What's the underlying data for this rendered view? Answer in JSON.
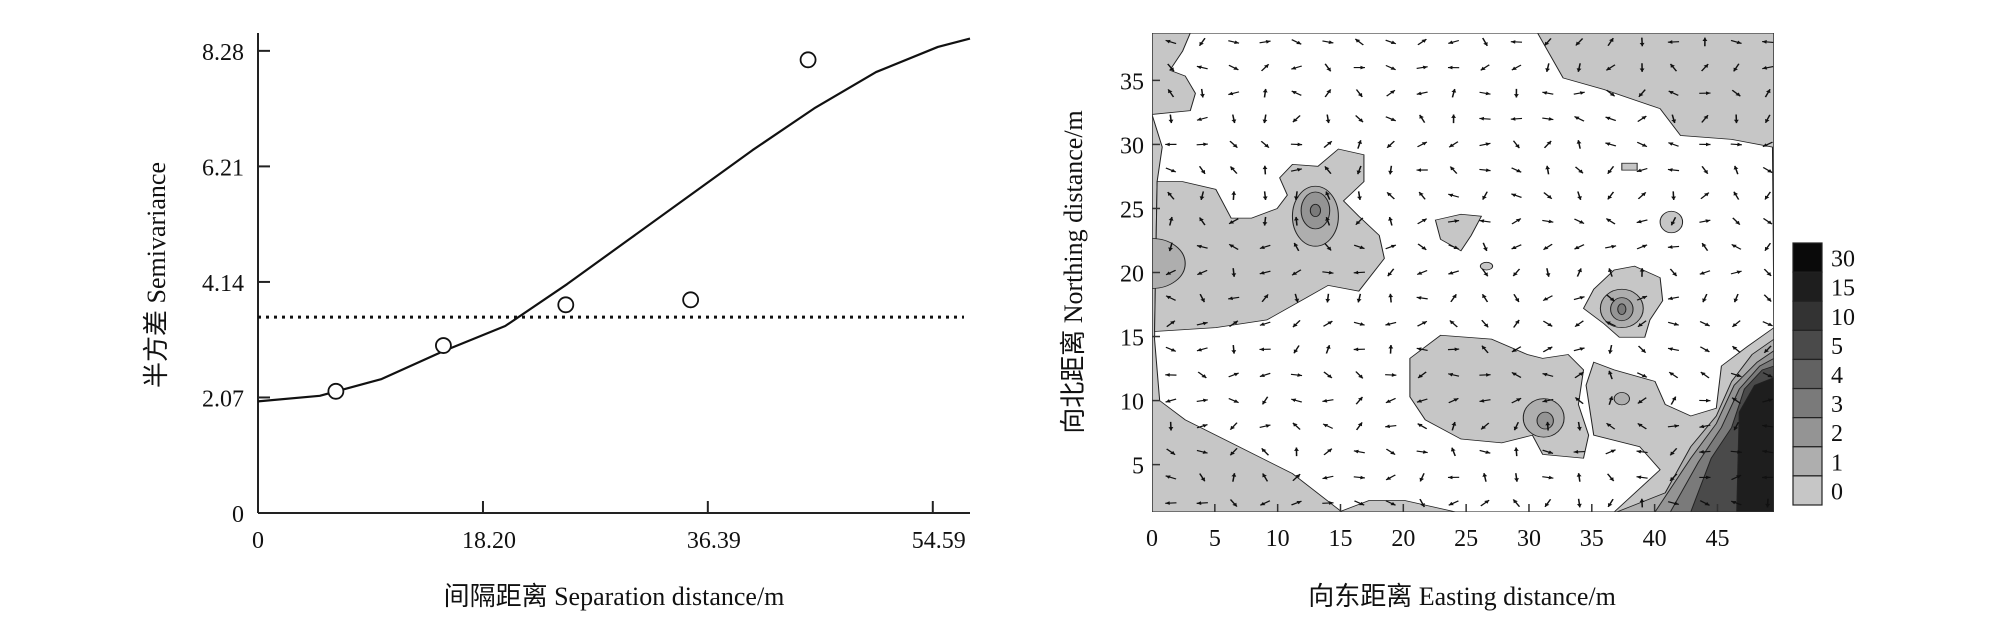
{
  "chart_data": [
    {
      "type": "scatter",
      "xlabel": "间隔距离 Separation distance/m",
      "ylabel": "半方差 Semivariance",
      "xlim": [
        0,
        57.6
      ],
      "ylim": [
        0,
        8.6
      ],
      "xticks": [
        "0",
        "18.20",
        "36.39",
        "54.59"
      ],
      "xtick_values": [
        0,
        18.2,
        36.39,
        54.59
      ],
      "yticks": [
        "0",
        "2.07",
        "4.14",
        "6.21",
        "8.28"
      ],
      "ytick_values": [
        0,
        2.07,
        4.14,
        6.21,
        8.28
      ],
      "points": [
        {
          "x": 6.3,
          "y": 2.18
        },
        {
          "x": 15.0,
          "y": 3.0
        },
        {
          "x": 24.9,
          "y": 3.73
        },
        {
          "x": 35.0,
          "y": 3.82
        },
        {
          "x": 44.5,
          "y": 8.12
        }
      ],
      "model_curve": {
        "x": [
          0,
          5,
          10,
          15,
          20,
          25,
          30,
          35,
          40,
          45,
          50,
          55,
          57.6
        ],
        "y": [
          2.0,
          2.1,
          2.4,
          2.9,
          3.35,
          4.1,
          4.9,
          5.7,
          6.5,
          7.25,
          7.9,
          8.35,
          8.5
        ]
      },
      "sill_line_y": 3.51,
      "grid": false
    },
    {
      "type": "heatmap",
      "subtype": "filled-contour with vector field",
      "xlabel": "向东距离 Easting distance/m",
      "ylabel": "向北距离 Northing distance/m",
      "xlim": [
        0,
        49.5
      ],
      "ylim": [
        1.3,
        38.7
      ],
      "xticks": [
        "0",
        "5",
        "10",
        "15",
        "20",
        "25",
        "30",
        "35",
        "40",
        "45"
      ],
      "xtick_values": [
        0,
        5,
        10,
        15,
        20,
        25,
        30,
        35,
        40,
        45
      ],
      "yticks": [
        "5",
        "10",
        "15",
        "20",
        "25",
        "30",
        "35"
      ],
      "ytick_values": [
        5,
        10,
        15,
        20,
        25,
        30,
        35
      ],
      "legend": {
        "placement": "right",
        "levels": [
          "30",
          "15",
          "10",
          "5",
          "4",
          "3",
          "2",
          "1",
          "0"
        ],
        "colors": [
          "#0a0a0a",
          "#1e1e1e",
          "#333333",
          "#4a4a4a",
          "#626262",
          "#7a7a7a",
          "#949494",
          "#aeaeae",
          "#c6c6c6"
        ]
      },
      "vector_field": {
        "x_start": 1.5,
        "x_step": 2.5,
        "y_start": 2,
        "y_step": 2
      }
    }
  ]
}
